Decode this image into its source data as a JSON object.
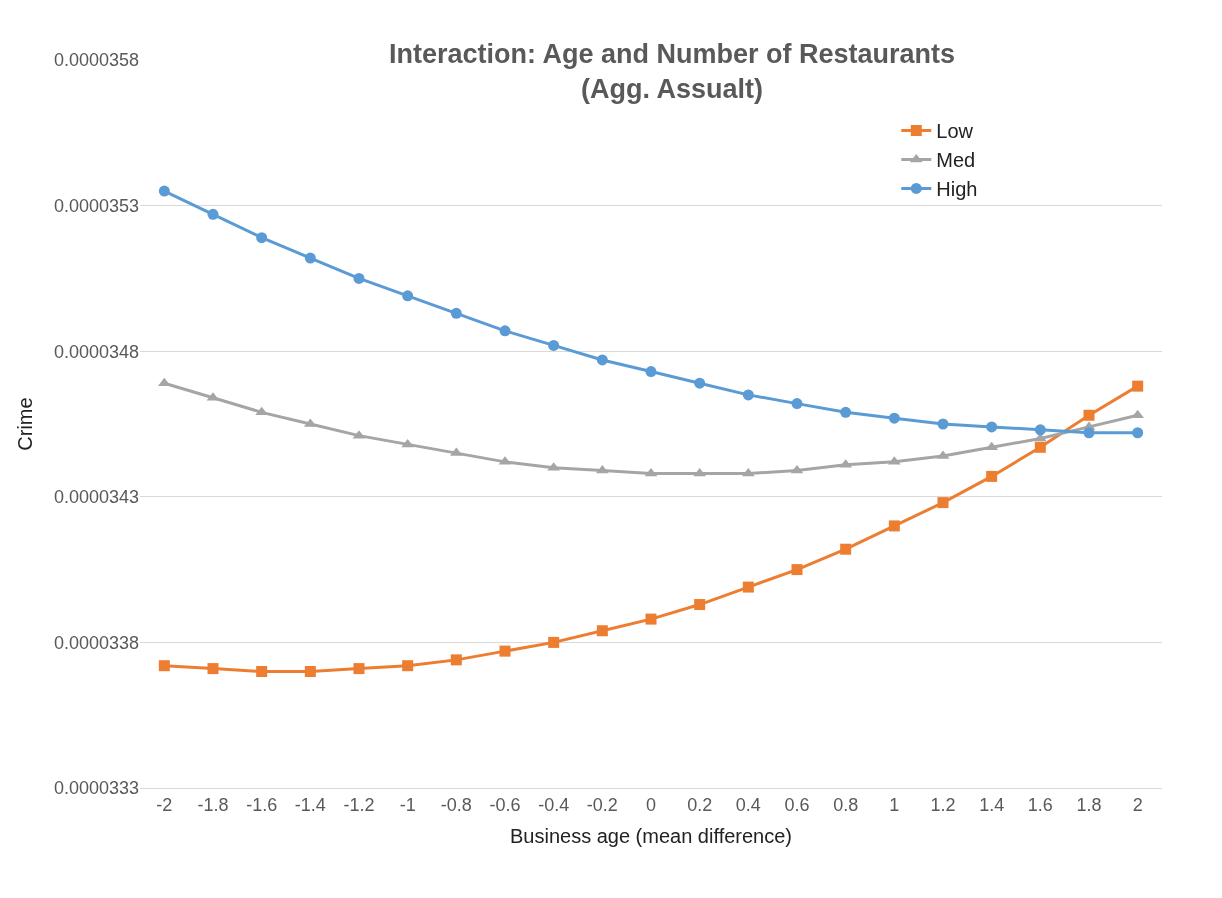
{
  "chart_data": {
    "type": "line",
    "title": "Interaction: Age and Number of Restaurants\n(Agg. Assualt)",
    "xlabel": "Business age (mean difference)",
    "ylabel": "Crime",
    "categories": [
      "-2",
      "-1.8",
      "-1.6",
      "-1.4",
      "-1.2",
      "-1",
      "-0.8",
      "-0.6",
      "-0.4",
      "-0.2",
      "0",
      "0.2",
      "0.4",
      "0.6",
      "0.8",
      "1",
      "1.2",
      "1.4",
      "1.6",
      "1.8",
      "2"
    ],
    "series": [
      {
        "name": "Low",
        "color": "#ed7d31",
        "marker": "square",
        "values": [
          3.372e-05,
          3.371e-05,
          3.37e-05,
          3.37e-05,
          3.371e-05,
          3.372e-05,
          3.374e-05,
          3.377e-05,
          3.38e-05,
          3.384e-05,
          3.388e-05,
          3.393e-05,
          3.399e-05,
          3.405e-05,
          3.412e-05,
          3.42e-05,
          3.428e-05,
          3.437e-05,
          3.447e-05,
          3.458e-05,
          3.468e-05
        ]
      },
      {
        "name": "Med",
        "color": "#a5a5a5",
        "marker": "triangle",
        "values": [
          3.469e-05,
          3.464e-05,
          3.459e-05,
          3.455e-05,
          3.451e-05,
          3.448e-05,
          3.445e-05,
          3.442e-05,
          3.44e-05,
          3.439e-05,
          3.438e-05,
          3.438e-05,
          3.438e-05,
          3.439e-05,
          3.441e-05,
          3.442e-05,
          3.444e-05,
          3.447e-05,
          3.45e-05,
          3.454e-05,
          3.458e-05
        ]
      },
      {
        "name": "High",
        "color": "#5b9bd5",
        "marker": "circle",
        "values": [
          3.535e-05,
          3.527e-05,
          3.519e-05,
          3.512e-05,
          3.505e-05,
          3.499e-05,
          3.493e-05,
          3.487e-05,
          3.482e-05,
          3.477e-05,
          3.473e-05,
          3.469e-05,
          3.465e-05,
          3.462e-05,
          3.459e-05,
          3.457e-05,
          3.455e-05,
          3.454e-05,
          3.453e-05,
          3.452e-05,
          3.452e-05
        ]
      }
    ],
    "ylim": [
      3.33e-05,
      3.58e-05
    ],
    "yticks": [
      {
        "value": 3.33e-05,
        "label": "0.0000333"
      },
      {
        "value": 3.38e-05,
        "label": "0.0000338"
      },
      {
        "value": 3.43e-05,
        "label": "0.0000343"
      },
      {
        "value": 3.48e-05,
        "label": "0.0000348"
      },
      {
        "value": 3.53e-05,
        "label": "0.0000353"
      },
      {
        "value": 3.58e-05,
        "label": "0.0000358"
      }
    ],
    "grid": "y",
    "legend": "top right",
    "line_style": "solid"
  }
}
